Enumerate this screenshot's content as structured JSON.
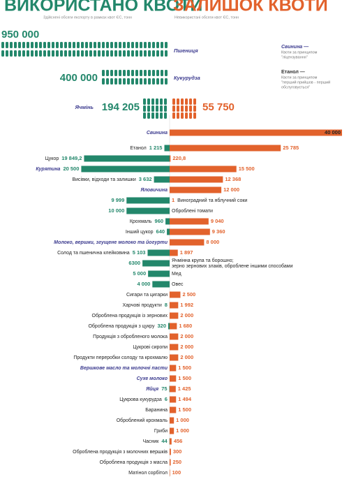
{
  "header": {
    "used_title": "ВИКОРИСТАНО КВОТИ",
    "used_subtitle": "Здійснені обсяги експорту в рамках квот ЄС, тонн",
    "remaining_title": "ЗАЛИШОК КВОТИ",
    "remaining_subtitle": "Невикористані обсяги квот ЄС, тонн"
  },
  "legend": [
    {
      "name": "Свинина —",
      "lines": [
        "Квоти за принципом",
        "\"ліцензування\""
      ]
    },
    {
      "name": "Етанол —",
      "lines": [
        "Квоти за принципом",
        "\"перший прийшов - перший",
        "обслуговується\""
      ]
    }
  ],
  "grains": [
    {
      "name": "Пшениця",
      "used": 950000,
      "used_label": "950 000"
    },
    {
      "name": "Кукурудза",
      "used": 400000,
      "used_label": "400 000"
    },
    {
      "name": "Ячмінь",
      "used": 194205,
      "used_label": "194 205",
      "remaining": 55750,
      "remaining_label": "55 750"
    }
  ],
  "chart_data": {
    "type": "diverging-bar",
    "xlim": [
      0,
      40000
    ],
    "categories": [
      "Свинина",
      "Етанол",
      "Цукор",
      "Курятина",
      "Висівки, відходи та залишки",
      "Яловичина",
      "Виноградний та яблучний соки",
      "Оброблені томати",
      "Крохмаль",
      "Інший цукор",
      "Молоко, вершки, згущене молоко та йогурти",
      "Солод та пшенична клейковина",
      [
        "Ячмінна крупа та борошно;",
        "зерно зернових злаків, оброблене іншими способами"
      ],
      "Мед",
      "Овес",
      "Сигари та цигарки",
      "Харчові продукти",
      "Оброблена продукція із зернових",
      "Оброблена продукція з цукру",
      "Продукція з обробленого молока",
      "Цукрові сиропи",
      "Продукти переробки солоду та крохмалю",
      "Вершкове масло та молочні пасти",
      "Сухе молоко",
      "Яйця",
      "Цукрова кукурудза",
      "Баранина",
      "Оброблений крохмаль",
      "Гриби",
      "Часник",
      "Оброблена продукція з молочних вершків",
      "Оброблена продукція з масла",
      "Матінол сорбітол"
    ],
    "licensed": [
      true,
      false,
      false,
      true,
      false,
      true,
      false,
      false,
      false,
      false,
      true,
      false,
      false,
      false,
      false,
      false,
      false,
      false,
      false,
      false,
      false,
      false,
      true,
      true,
      true,
      false,
      false,
      false,
      false,
      false,
      false,
      false,
      false
    ],
    "series": [
      {
        "color": "#23876b",
        "values": [
          null,
          1215,
          19849.2,
          20500,
          3632,
          null,
          9999,
          10000,
          960,
          640,
          null,
          5103,
          6300,
          5000,
          4000,
          null,
          8,
          null,
          320,
          null,
          null,
          null,
          null,
          null,
          75,
          6,
          null,
          null,
          null,
          44,
          null,
          null,
          null
        ],
        "value_labels": [
          null,
          "1 215",
          "19 849,2",
          "20 500",
          "3 632",
          null,
          "9 999",
          "10 000",
          "960",
          "640",
          null,
          "5 103",
          "6300",
          "5 000",
          "4 000",
          null,
          "8",
          null,
          "320",
          null,
          null,
          null,
          null,
          null,
          "75",
          "6",
          null,
          null,
          null,
          "44",
          null,
          null,
          null
        ]
      },
      {
        "color": "#e2622c",
        "values": [
          40000,
          25785,
          220.8,
          15500,
          12368,
          12000,
          1,
          null,
          9040,
          9360,
          8000,
          1897,
          null,
          null,
          null,
          2500,
          1992,
          2000,
          1680,
          2000,
          2000,
          2000,
          1500,
          1500,
          1425,
          1494,
          1500,
          1000,
          1000,
          456,
          300,
          250,
          100
        ],
        "value_labels": [
          "40 000",
          "25 785",
          "220,8",
          "15 500",
          "12 368",
          "12 000",
          "1",
          null,
          "9 040",
          "9 360",
          "8 000",
          "1 897",
          null,
          null,
          null,
          "2 500",
          "1 992",
          "2 000",
          "1 680",
          "2 000",
          "2 000",
          "2 000",
          "1 500",
          "1 500",
          "1 425",
          "1 494",
          "1 500",
          "1 000",
          "1 000",
          "456",
          "300",
          "250",
          "100"
        ]
      }
    ]
  }
}
